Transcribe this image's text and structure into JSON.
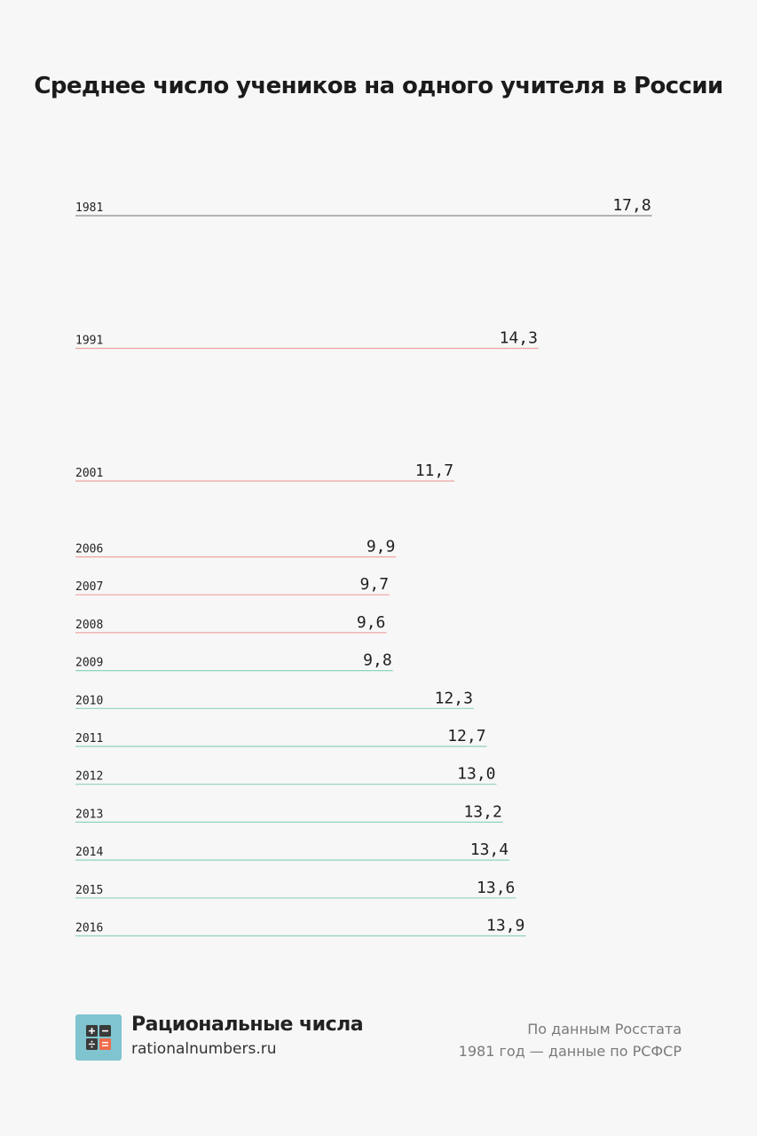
{
  "chart_data": {
    "type": "bar",
    "title": "Среднее число учеников на одного учителя в России",
    "categories": [
      "1981",
      "1991",
      "2001",
      "2006",
      "2007",
      "2008",
      "2009",
      "2010",
      "2011",
      "2012",
      "2013",
      "2014",
      "2015",
      "2016"
    ],
    "values": [
      17.8,
      14.3,
      11.7,
      9.9,
      9.7,
      9.6,
      9.8,
      12.3,
      12.7,
      13.0,
      13.2,
      13.4,
      13.6,
      13.9
    ],
    "value_labels": [
      "17,8",
      "14,3",
      "11,7",
      "9,9",
      "9,7",
      "9,6",
      "9,8",
      "12,3",
      "12,7",
      "13,0",
      "13,2",
      "13,4",
      "13,6",
      "13,9"
    ],
    "colors": {
      "baseline": "#8a8a8a",
      "decline": "#f0a3a3",
      "growth": "#8fd3c0"
    },
    "series_colors": [
      "baseline",
      "decline",
      "decline",
      "decline",
      "decline",
      "decline",
      "growth",
      "growth",
      "growth",
      "growth",
      "growth",
      "growth",
      "growth",
      "growth"
    ]
  },
  "footer": {
    "brand_name": "Рациональные числа",
    "brand_url": "rationalnumbers.ru",
    "source_line1": "По данным Росстата",
    "source_line2": "1981 год — данные по РСФСР"
  },
  "logo": {
    "icon": "calculator-icon",
    "bg_color": "#7fc4cf",
    "tile_dark": "#3a3a3a",
    "tile_accent": "#ef6b4b"
  }
}
